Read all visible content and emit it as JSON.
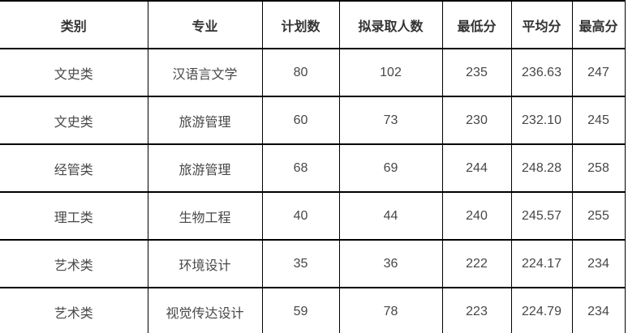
{
  "chart_data": {
    "type": "table",
    "headers": [
      "类别",
      "专业",
      "计划数",
      "拟录取人数",
      "最低分",
      "平均分",
      "最高分"
    ],
    "rows": [
      [
        "文史类",
        "汉语言文学",
        "80",
        "102",
        "235",
        "236.63",
        "247"
      ],
      [
        "文史类",
        "旅游管理",
        "60",
        "73",
        "230",
        "232.10",
        "245"
      ],
      [
        "经管类",
        "旅游管理",
        "68",
        "69",
        "244",
        "248.28",
        "258"
      ],
      [
        "理工类",
        "生物工程",
        "40",
        "44",
        "240",
        "245.57",
        "255"
      ],
      [
        "艺术类",
        "环境设计",
        "35",
        "36",
        "222",
        "224.17",
        "234"
      ],
      [
        "艺术类",
        "视觉传达设计",
        "59",
        "78",
        "223",
        "224.79",
        "234"
      ]
    ],
    "colors": {
      "border": "#000000",
      "header_text": "#333333",
      "body_text": "#474747",
      "background": "#ffffff"
    }
  }
}
